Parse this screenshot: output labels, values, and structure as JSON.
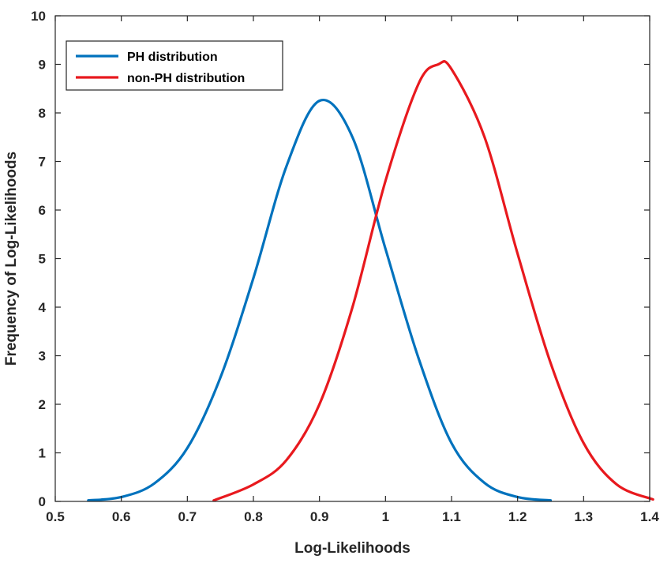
{
  "chart_data": {
    "type": "line",
    "title": "",
    "xlabel": "Log-Likelihoods",
    "ylabel": "Frequency of Log-Likelihoods",
    "xlim": [
      0.5,
      1.4
    ],
    "ylim": [
      0,
      10
    ],
    "xticks": [
      "0.5",
      "0.6",
      "0.7",
      "0.8",
      "0.9",
      "1",
      "1.1",
      "1.2",
      "1.3",
      "1.4"
    ],
    "yticks": [
      "0",
      "1",
      "2",
      "3",
      "4",
      "5",
      "6",
      "7",
      "8",
      "9",
      "10"
    ],
    "grid": false,
    "legend_position": "top-left",
    "series": [
      {
        "name": "PH distribution",
        "color": "#0072BD",
        "x": [
          0.55,
          0.6,
          0.65,
          0.7,
          0.75,
          0.8,
          0.85,
          0.9,
          0.95,
          1.0,
          1.05,
          1.1,
          1.15,
          1.2,
          1.25
        ],
        "y": [
          0.02,
          0.09,
          0.37,
          1.1,
          2.55,
          4.6,
          6.9,
          8.25,
          7.5,
          5.2,
          2.95,
          1.2,
          0.38,
          0.09,
          0.02
        ]
      },
      {
        "name": "non-PH distribution",
        "color": "#E8191E",
        "x": [
          0.74,
          0.8,
          0.85,
          0.9,
          0.95,
          1.0,
          1.05,
          1.08,
          1.1,
          1.15,
          1.2,
          1.25,
          1.3,
          1.35,
          1.405
        ],
        "y": [
          0.02,
          0.35,
          0.85,
          2.0,
          4.0,
          6.6,
          8.6,
          9.0,
          8.9,
          7.5,
          5.1,
          2.85,
          1.2,
          0.35,
          0.04
        ]
      }
    ]
  }
}
